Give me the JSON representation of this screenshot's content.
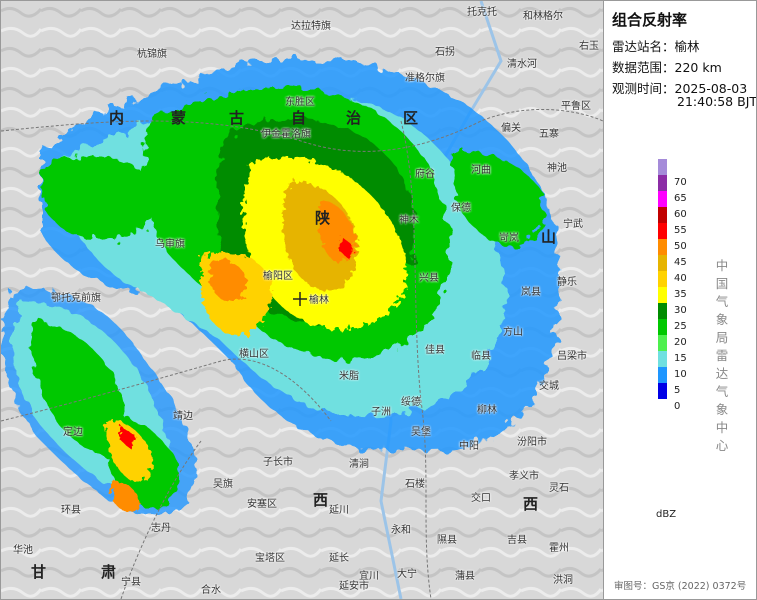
{
  "panel": {
    "title": "组合反射率",
    "station_label": "雷达站名：",
    "station": "榆林",
    "range_label": "数据范围：",
    "range": "220 km",
    "time_label": "观测时间：",
    "date": "2025-08-03",
    "time": "21:40:58 BJT",
    "unit": "dBZ",
    "agency": "中国气象局雷达气象中心",
    "approval": "审图号：GS京 (2022) 0372号"
  },
  "legend": [
    {
      "value": "70",
      "color": "#a58bd9"
    },
    {
      "value": "65",
      "color": "#8c2ca6"
    },
    {
      "value": "60",
      "color": "#ff00ff"
    },
    {
      "value": "55",
      "color": "#c10000"
    },
    {
      "value": "50",
      "color": "#ff0000"
    },
    {
      "value": "45",
      "color": "#ff8c00"
    },
    {
      "value": "40",
      "color": "#e6b400"
    },
    {
      "value": "35",
      "color": "#ffd200"
    },
    {
      "value": "30",
      "color": "#ffff00"
    },
    {
      "value": "25",
      "color": "#008c00"
    },
    {
      "value": "20",
      "color": "#00c800"
    },
    {
      "value": "15",
      "color": "#4ef04e"
    },
    {
      "value": "10",
      "color": "#70e0e0"
    },
    {
      "value": "5",
      "color": "#1e96ff"
    },
    {
      "value": "0",
      "color": "#0000e6"
    }
  ],
  "map": {
    "provinces": [
      "内",
      "蒙",
      "古",
      "自",
      "治",
      "区",
      "陕",
      "西",
      "甘",
      "肃",
      "西",
      "山"
    ],
    "cities": [
      "托克托",
      "和林格尔",
      "达拉特旗",
      "杭锦旗",
      "石拐",
      "右玉",
      "清水河",
      "准格尔旗",
      "伊金霍洛旗",
      "平鲁区",
      "东胜区",
      "偏关",
      "神池",
      "河曲",
      "宁武",
      "府谷",
      "保德",
      "静乐",
      "岢岚",
      "神木",
      "乌审旗",
      "榆阳区",
      "榆林",
      "佳县",
      "米脂",
      "临县",
      "吕梁市",
      "方山",
      "交城",
      "孝义市",
      "汾阳市",
      "靖边",
      "横山区",
      "子长市",
      "延川",
      "延安市",
      "安塞区",
      "清涧",
      "石楼",
      "交口",
      "灵石",
      "永和",
      "宝塔区",
      "延长",
      "隰县",
      "吉县",
      "大宁",
      "蒲县",
      "宜川",
      "洪洞",
      "霍州",
      "环县",
      "华池",
      "吴旗",
      "志丹",
      "鄂托克前旗",
      "定边",
      "柳林",
      "中阳",
      "岚县",
      "兴县",
      "绥德",
      "子洲",
      "吴堡",
      "宁县",
      "合水",
      "五寨"
    ]
  }
}
